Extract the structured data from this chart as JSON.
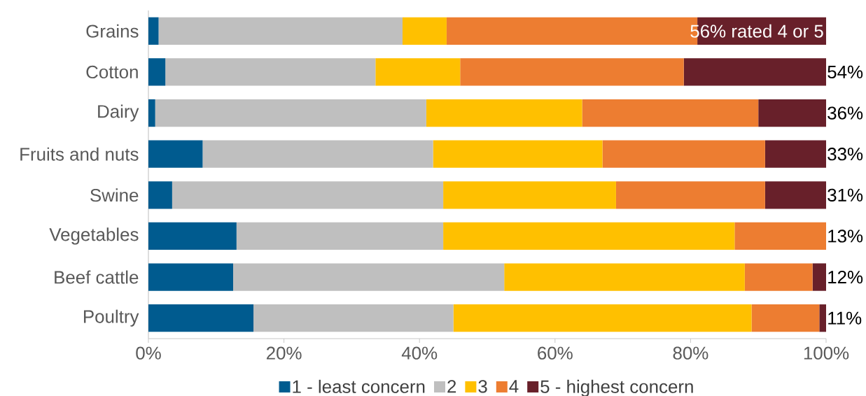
{
  "chart_data": {
    "type": "bar",
    "orientation": "horizontal",
    "stacked": true,
    "categories": [
      "Grains",
      "Cotton",
      "Dairy",
      "Fruits and nuts",
      "Swine",
      "Vegetables",
      "Beef cattle",
      "Poultry"
    ],
    "series": [
      {
        "name": "1 - least concern",
        "color": "#005b8f",
        "values": [
          1.5,
          2.5,
          1,
          8,
          3.5,
          13,
          12.5,
          15.5
        ]
      },
      {
        "name": "2",
        "color": "#bfbfbf",
        "values": [
          36,
          31,
          40,
          34,
          40,
          30.5,
          40,
          29.5
        ]
      },
      {
        "name": "3",
        "color": "#ffc000",
        "values": [
          6.5,
          12.5,
          23,
          25,
          25.5,
          43,
          35.5,
          44
        ]
      },
      {
        "name": "4",
        "color": "#ed7d31",
        "values": [
          37,
          33,
          26,
          24,
          22,
          13.5,
          10,
          10
        ]
      },
      {
        "name": "5 - highest concern",
        "color": "#68202a",
        "values": [
          19,
          21,
          10,
          9,
          9,
          0,
          2,
          1
        ]
      }
    ],
    "xlim": [
      0,
      100
    ],
    "xticks": [
      {
        "value": 0,
        "label": "0%"
      },
      {
        "value": 20,
        "label": "20%"
      },
      {
        "value": 40,
        "label": "40%"
      },
      {
        "value": 60,
        "label": "60%"
      },
      {
        "value": 80,
        "label": "80%"
      },
      {
        "value": 100,
        "label": "100%"
      }
    ],
    "legend": "bottom",
    "annotations": [
      "56% rated 4 or 5",
      "54%",
      "36%",
      "33%",
      "31%",
      "13%",
      "12%",
      "11%"
    ]
  }
}
